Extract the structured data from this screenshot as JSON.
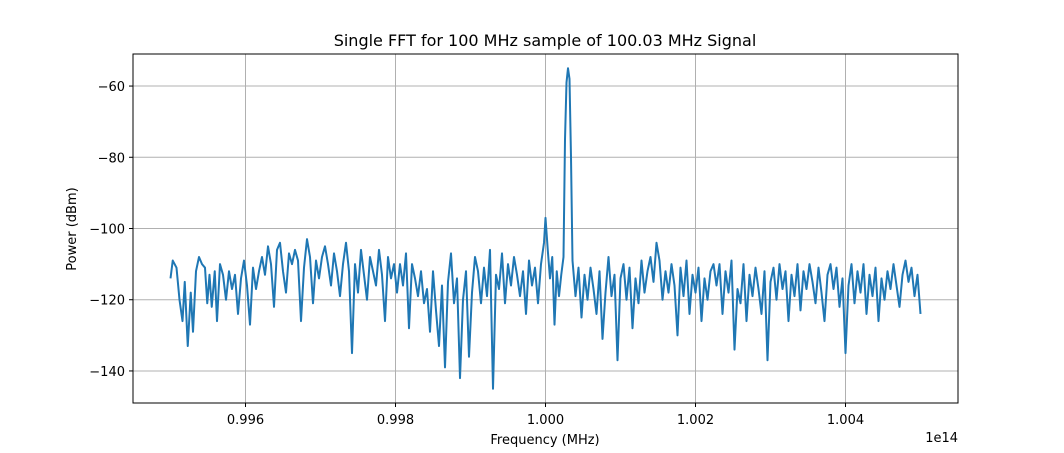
{
  "chart_data": {
    "type": "line",
    "title": "Single FFT for 100 MHz sample of 100.03 MHz Signal",
    "xlabel": "Frequency (MHz)",
    "ylabel": "Power (dBm)",
    "x_offset_label": "1e14",
    "xlim": [
      0.9945,
      1.0055
    ],
    "ylim": [
      -149,
      -51
    ],
    "grid": true,
    "x_ticks": [
      0.996,
      0.998,
      1.0,
      1.002,
      1.004
    ],
    "x_tick_labels": [
      "0.996",
      "0.998",
      "1.000",
      "1.002",
      "1.004"
    ],
    "y_ticks": [
      -140,
      -120,
      -100,
      -80,
      -60
    ],
    "y_tick_labels": [
      "−140",
      "−120",
      "−100",
      "−80",
      "−60"
    ],
    "series": [
      {
        "color": "#1f77b4",
        "points": [
          [
            0.995,
            -114
          ],
          [
            0.99503,
            -109
          ],
          [
            0.99508,
            -111
          ],
          [
            0.99512,
            -120
          ],
          [
            0.99516,
            -126
          ],
          [
            0.99519,
            -115
          ],
          [
            0.99523,
            -133
          ],
          [
            0.99527,
            -118
          ],
          [
            0.9953,
            -129
          ],
          [
            0.99534,
            -112
          ],
          [
            0.99538,
            -108
          ],
          [
            0.99542,
            -110
          ],
          [
            0.99546,
            -111
          ],
          [
            0.99549,
            -121
          ],
          [
            0.99552,
            -113
          ],
          [
            0.99555,
            -122
          ],
          [
            0.99559,
            -112
          ],
          [
            0.99562,
            -126
          ],
          [
            0.99566,
            -110
          ],
          [
            0.9957,
            -113
          ],
          [
            0.99574,
            -120
          ],
          [
            0.99578,
            -112
          ],
          [
            0.99582,
            -117
          ],
          [
            0.99586,
            -113
          ],
          [
            0.9959,
            -124
          ],
          [
            0.99594,
            -114
          ],
          [
            0.99598,
            -109
          ],
          [
            0.99602,
            -116
          ],
          [
            0.99606,
            -127
          ],
          [
            0.9961,
            -111
          ],
          [
            0.99614,
            -117
          ],
          [
            0.99618,
            -112
          ],
          [
            0.99622,
            -108
          ],
          [
            0.99626,
            -113
          ],
          [
            0.9963,
            -105
          ],
          [
            0.99634,
            -110
          ],
          [
            0.99638,
            -122
          ],
          [
            0.99642,
            -106
          ],
          [
            0.99646,
            -104
          ],
          [
            0.9965,
            -112
          ],
          [
            0.99654,
            -118
          ],
          [
            0.99658,
            -107
          ],
          [
            0.99662,
            -110
          ],
          [
            0.99666,
            -106
          ],
          [
            0.9967,
            -109
          ],
          [
            0.99674,
            -126
          ],
          [
            0.99678,
            -111
          ],
          [
            0.99682,
            -103
          ],
          [
            0.99686,
            -108
          ],
          [
            0.9969,
            -121
          ],
          [
            0.99694,
            -109
          ],
          [
            0.99698,
            -114
          ],
          [
            0.99702,
            -108
          ],
          [
            0.99706,
            -105
          ],
          [
            0.9971,
            -110
          ],
          [
            0.99714,
            -116
          ],
          [
            0.99718,
            -107
          ],
          [
            0.99722,
            -112
          ],
          [
            0.99726,
            -119
          ],
          [
            0.9973,
            -110
          ],
          [
            0.99734,
            -104
          ],
          [
            0.99738,
            -112
          ],
          [
            0.99742,
            -135
          ],
          [
            0.99746,
            -110
          ],
          [
            0.9975,
            -118
          ],
          [
            0.99754,
            -106
          ],
          [
            0.99758,
            -113
          ],
          [
            0.99762,
            -120
          ],
          [
            0.99766,
            -108
          ],
          [
            0.9977,
            -112
          ],
          [
            0.99774,
            -116
          ],
          [
            0.99778,
            -106
          ],
          [
            0.99782,
            -113
          ],
          [
            0.99786,
            -126
          ],
          [
            0.9979,
            -108
          ],
          [
            0.99794,
            -114
          ],
          [
            0.99798,
            -110
          ],
          [
            0.99802,
            -118
          ],
          [
            0.99806,
            -110
          ],
          [
            0.9981,
            -116
          ],
          [
            0.99814,
            -107
          ],
          [
            0.99818,
            -128
          ],
          [
            0.99822,
            -110
          ],
          [
            0.99826,
            -114
          ],
          [
            0.9983,
            -119
          ],
          [
            0.99834,
            -112
          ],
          [
            0.99838,
            -121
          ],
          [
            0.99842,
            -117
          ],
          [
            0.99846,
            -129
          ],
          [
            0.9985,
            -112
          ],
          [
            0.99854,
            -123
          ],
          [
            0.99858,
            -133
          ],
          [
            0.99862,
            -116
          ],
          [
            0.99866,
            -139
          ],
          [
            0.9987,
            -115
          ],
          [
            0.99874,
            -107
          ],
          [
            0.99878,
            -121
          ],
          [
            0.99882,
            -114
          ],
          [
            0.99886,
            -142
          ],
          [
            0.9989,
            -120
          ],
          [
            0.99894,
            -112
          ],
          [
            0.99898,
            -136
          ],
          [
            0.99902,
            -118
          ],
          [
            0.99906,
            -108
          ],
          [
            0.9991,
            -112
          ],
          [
            0.99914,
            -121
          ],
          [
            0.99918,
            -111
          ],
          [
            0.99922,
            -119
          ],
          [
            0.99926,
            -106
          ],
          [
            0.9993,
            -145
          ],
          [
            0.99934,
            -113
          ],
          [
            0.99938,
            -117
          ],
          [
            0.99942,
            -107
          ],
          [
            0.99946,
            -121
          ],
          [
            0.9995,
            -110
          ],
          [
            0.99954,
            -116
          ],
          [
            0.99958,
            -108
          ],
          [
            0.99962,
            -113
          ],
          [
            0.99966,
            -119
          ],
          [
            0.9997,
            -112
          ],
          [
            0.99974,
            -124
          ],
          [
            0.99978,
            -109
          ],
          [
            0.99982,
            -116
          ],
          [
            0.99986,
            -111
          ],
          [
            0.9999,
            -121
          ],
          [
            0.99994,
            -110
          ],
          [
            0.99998,
            -104
          ],
          [
            1.0,
            -97
          ],
          [
            1.00003,
            -106
          ],
          [
            1.00006,
            -114
          ],
          [
            1.00009,
            -108
          ],
          [
            1.00012,
            -127
          ],
          [
            1.00015,
            -112
          ],
          [
            1.00018,
            -119
          ],
          [
            1.00021,
            -113
          ],
          [
            1.00024,
            -108
          ],
          [
            1.00026,
            -75
          ],
          [
            1.00028,
            -59
          ],
          [
            1.0003,
            -55
          ],
          [
            1.00032,
            -58
          ],
          [
            1.00034,
            -80
          ],
          [
            1.00036,
            -109
          ],
          [
            1.0004,
            -119
          ],
          [
            1.00044,
            -111
          ],
          [
            1.00048,
            -125
          ],
          [
            1.00052,
            -113
          ],
          [
            1.00056,
            -120
          ],
          [
            1.0006,
            -111
          ],
          [
            1.00064,
            -117
          ],
          [
            1.00068,
            -124
          ],
          [
            1.00072,
            -112
          ],
          [
            1.00076,
            -131
          ],
          [
            1.0008,
            -118
          ],
          [
            1.00084,
            -108
          ],
          [
            1.00088,
            -119
          ],
          [
            1.00092,
            -113
          ],
          [
            1.00096,
            -137
          ],
          [
            1.001,
            -114
          ],
          [
            1.00104,
            -110
          ],
          [
            1.00108,
            -120
          ],
          [
            1.00112,
            -111
          ],
          [
            1.00116,
            -128
          ],
          [
            1.0012,
            -114
          ],
          [
            1.00124,
            -121
          ],
          [
            1.00128,
            -109
          ],
          [
            1.00132,
            -118
          ],
          [
            1.00136,
            -112
          ],
          [
            1.0014,
            -108
          ],
          [
            1.00144,
            -115
          ],
          [
            1.00148,
            -104
          ],
          [
            1.00152,
            -109
          ],
          [
            1.00156,
            -120
          ],
          [
            1.0016,
            -112
          ],
          [
            1.00164,
            -118
          ],
          [
            1.00168,
            -110
          ],
          [
            1.00172,
            -116
          ],
          [
            1.00176,
            -130
          ],
          [
            1.0018,
            -111
          ],
          [
            1.00184,
            -119
          ],
          [
            1.00188,
            -109
          ],
          [
            1.00192,
            -124
          ],
          [
            1.00196,
            -113
          ],
          [
            1.002,
            -118
          ],
          [
            1.00204,
            -111
          ],
          [
            1.00208,
            -126
          ],
          [
            1.00212,
            -114
          ],
          [
            1.00216,
            -120
          ],
          [
            1.0022,
            -112
          ],
          [
            1.00224,
            -110
          ],
          [
            1.00228,
            -116
          ],
          [
            1.00232,
            -110
          ],
          [
            1.00236,
            -124
          ],
          [
            1.0024,
            -112
          ],
          [
            1.00244,
            -118
          ],
          [
            1.00248,
            -109
          ],
          [
            1.00252,
            -134
          ],
          [
            1.00256,
            -117
          ],
          [
            1.0026,
            -121
          ],
          [
            1.00264,
            -110
          ],
          [
            1.00268,
            -126
          ],
          [
            1.00272,
            -113
          ],
          [
            1.00276,
            -119
          ],
          [
            1.0028,
            -111
          ],
          [
            1.00284,
            -117
          ],
          [
            1.00288,
            -124
          ],
          [
            1.00292,
            -112
          ],
          [
            1.00296,
            -137
          ],
          [
            1.003,
            -115
          ],
          [
            1.00304,
            -111
          ],
          [
            1.00308,
            -120
          ],
          [
            1.00312,
            -110
          ],
          [
            1.00316,
            -117
          ],
          [
            1.0032,
            -112
          ],
          [
            1.00324,
            -126
          ],
          [
            1.00328,
            -113
          ],
          [
            1.00332,
            -119
          ],
          [
            1.00336,
            -110
          ],
          [
            1.0034,
            -123
          ],
          [
            1.00344,
            -112
          ],
          [
            1.00348,
            -117
          ],
          [
            1.00352,
            -110
          ],
          [
            1.00356,
            -115
          ],
          [
            1.0036,
            -121
          ],
          [
            1.00364,
            -111
          ],
          [
            1.00368,
            -118
          ],
          [
            1.00372,
            -126
          ],
          [
            1.00376,
            -113
          ],
          [
            1.0038,
            -110
          ],
          [
            1.00384,
            -117
          ],
          [
            1.00388,
            -111
          ],
          [
            1.00392,
            -122
          ],
          [
            1.00396,
            -114
          ],
          [
            1.004,
            -135
          ],
          [
            1.00404,
            -116
          ],
          [
            1.00408,
            -110
          ],
          [
            1.00412,
            -121
          ],
          [
            1.00416,
            -112
          ],
          [
            1.0042,
            -118
          ],
          [
            1.00424,
            -110
          ],
          [
            1.00428,
            -124
          ],
          [
            1.00432,
            -113
          ],
          [
            1.00436,
            -119
          ],
          [
            1.0044,
            -111
          ],
          [
            1.00444,
            -126
          ],
          [
            1.00448,
            -114
          ],
          [
            1.00452,
            -120
          ],
          [
            1.00456,
            -112
          ],
          [
            1.0046,
            -117
          ],
          [
            1.00464,
            -110
          ],
          [
            1.00468,
            -116
          ],
          [
            1.00472,
            -122
          ],
          [
            1.00476,
            -113
          ],
          [
            1.0048,
            -109
          ],
          [
            1.00484,
            -115
          ],
          [
            1.00488,
            -111
          ],
          [
            1.00492,
            -119
          ],
          [
            1.00496,
            -113
          ],
          [
            1.005,
            -124
          ]
        ]
      }
    ]
  }
}
